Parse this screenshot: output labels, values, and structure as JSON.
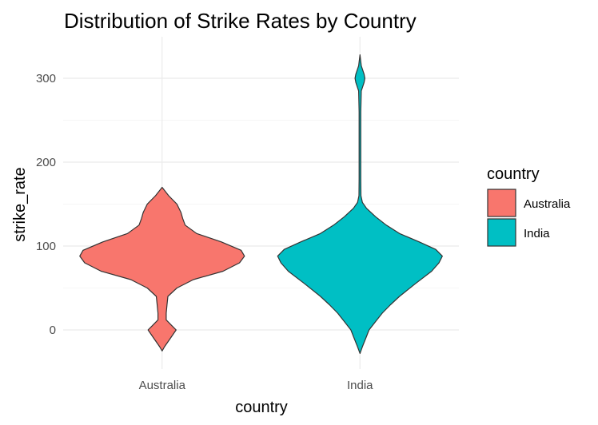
{
  "chart_data": {
    "type": "violin",
    "title": "Distribution of Strike Rates by Country",
    "xlabel": "country",
    "ylabel": "strike_rate",
    "categories": [
      "Australia",
      "India"
    ],
    "ylim": [
      -45,
      345
    ],
    "yticks": [
      0,
      100,
      200,
      300
    ],
    "grid": true,
    "legend": {
      "title": "country",
      "position": "right"
    },
    "series": [
      {
        "name": "Australia",
        "color": "#F8766D",
        "range": [
          -25,
          170
        ],
        "density": [
          [
            -25,
            0.0
          ],
          [
            -20,
            0.03
          ],
          [
            -10,
            0.1
          ],
          [
            0,
            0.17
          ],
          [
            5,
            0.12
          ],
          [
            12,
            0.05
          ],
          [
            20,
            0.05
          ],
          [
            30,
            0.06
          ],
          [
            40,
            0.07
          ],
          [
            50,
            0.18
          ],
          [
            60,
            0.38
          ],
          [
            70,
            0.74
          ],
          [
            80,
            0.94
          ],
          [
            88,
            1.0
          ],
          [
            95,
            0.96
          ],
          [
            105,
            0.72
          ],
          [
            115,
            0.42
          ],
          [
            125,
            0.28
          ],
          [
            133,
            0.25
          ],
          [
            140,
            0.23
          ],
          [
            150,
            0.18
          ],
          [
            160,
            0.08
          ],
          [
            170,
            0.0
          ]
        ]
      },
      {
        "name": "India",
        "color": "#00BFC4",
        "range": [
          -28,
          328
        ],
        "density": [
          [
            -28,
            0.0
          ],
          [
            -20,
            0.03
          ],
          [
            -10,
            0.07
          ],
          [
            0,
            0.11
          ],
          [
            10,
            0.19
          ],
          [
            20,
            0.27
          ],
          [
            30,
            0.37
          ],
          [
            40,
            0.48
          ],
          [
            55,
            0.67
          ],
          [
            70,
            0.87
          ],
          [
            80,
            0.96
          ],
          [
            88,
            1.0
          ],
          [
            96,
            0.92
          ],
          [
            105,
            0.72
          ],
          [
            115,
            0.48
          ],
          [
            125,
            0.32
          ],
          [
            135,
            0.19
          ],
          [
            145,
            0.08
          ],
          [
            152,
            0.03
          ],
          [
            160,
            0.012
          ],
          [
            180,
            0.01
          ],
          [
            220,
            0.01
          ],
          [
            260,
            0.01
          ],
          [
            285,
            0.016
          ],
          [
            295,
            0.05
          ],
          [
            300,
            0.06
          ],
          [
            305,
            0.05
          ],
          [
            315,
            0.016
          ],
          [
            328,
            0.0
          ]
        ]
      }
    ]
  }
}
